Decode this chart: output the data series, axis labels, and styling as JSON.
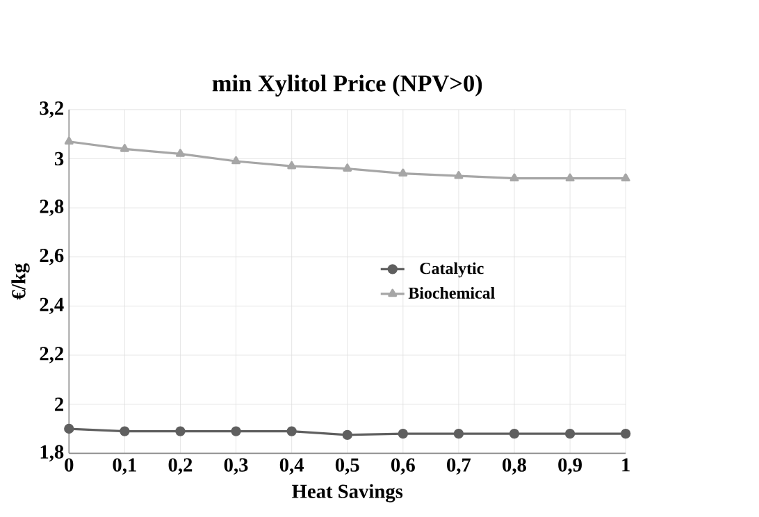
{
  "chart_data": {
    "type": "line",
    "title": "min  Xylitol Price (NPV>0)",
    "xlabel": "Heat Savings",
    "ylabel": "€/kg",
    "categories": [
      "0",
      "0,1",
      "0,2",
      "0,3",
      "0,4",
      "0,5",
      "0,6",
      "0,7",
      "0,8",
      "0,9",
      "1"
    ],
    "series": [
      {
        "name": "Catalytic",
        "color": "#5f5f5f",
        "marker": "circle",
        "values": [
          1.9,
          1.89,
          1.89,
          1.89,
          1.89,
          1.875,
          1.88,
          1.88,
          1.88,
          1.88,
          1.88
        ]
      },
      {
        "name": "Biochemical",
        "color": "#a6a6a6",
        "marker": "triangle",
        "values": [
          3.07,
          3.04,
          3.02,
          2.99,
          2.97,
          2.96,
          2.94,
          2.93,
          2.92,
          2.92,
          2.92
        ]
      }
    ],
    "ylim": [
      1.8,
      3.2
    ],
    "yticks": [
      {
        "value": 1.8,
        "label": "1,8"
      },
      {
        "value": 2,
        "label": "2"
      },
      {
        "value": 2.2,
        "label": "2,2"
      },
      {
        "value": 2.4,
        "label": "2,4"
      },
      {
        "value": 2.6,
        "label": "2,6"
      },
      {
        "value": 2.8,
        "label": "2,8"
      },
      {
        "value": 3,
        "label": "3"
      },
      {
        "value": 3.2,
        "label": "3,2"
      }
    ],
    "grid": true,
    "legend": "right",
    "line_style": "solid"
  }
}
